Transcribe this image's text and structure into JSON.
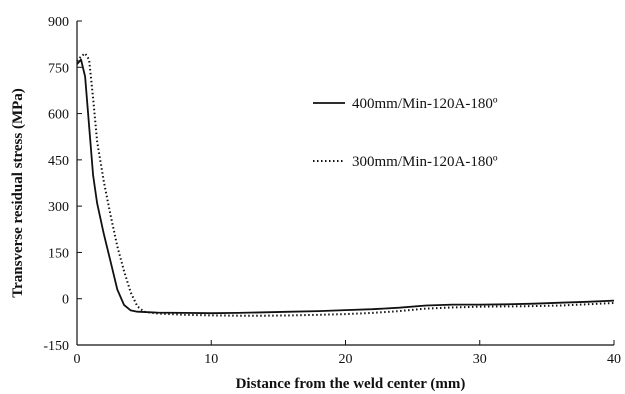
{
  "chart_data": {
    "type": "line",
    "title": "",
    "xlabel": "Distance from the weld center  (mm)",
    "ylabel": "Transverse residual stress  (MPa)",
    "xlim": [
      0,
      40
    ],
    "ylim": [
      -150,
      900
    ],
    "xticks": [
      0,
      10,
      20,
      30,
      40
    ],
    "yticks": [
      -150,
      0,
      150,
      300,
      450,
      600,
      750,
      900
    ],
    "grid": false,
    "legend_position": "right",
    "series": [
      {
        "name": "400mm/Min-120A-180º",
        "style": "solid",
        "color": "#111111",
        "x": [
          0,
          0.3,
          0.6,
          0.9,
          1.2,
          1.5,
          2.0,
          2.5,
          3.0,
          3.5,
          4.0,
          4.5,
          6,
          8,
          10,
          12,
          14,
          16,
          18,
          20,
          22,
          24,
          26,
          28,
          30,
          32,
          34,
          36,
          38,
          40
        ],
        "y": [
          760,
          775,
          720,
          560,
          400,
          310,
          210,
          120,
          30,
          -20,
          -38,
          -42,
          -45,
          -46,
          -47,
          -46,
          -44,
          -42,
          -40,
          -37,
          -34,
          -29,
          -22,
          -19,
          -19,
          -18,
          -16,
          -13,
          -10,
          -6
        ]
      },
      {
        "name": "300mm/Min-120A-180º",
        "style": "dotted",
        "color": "#111111",
        "x": [
          0,
          0.3,
          0.6,
          0.9,
          1.2,
          1.5,
          2.0,
          2.5,
          3.0,
          3.5,
          4.0,
          4.5,
          5.0,
          6,
          8,
          10,
          12,
          14,
          16,
          18,
          20,
          22,
          24,
          26,
          28,
          30,
          32,
          34,
          36,
          38,
          40
        ],
        "y": [
          770,
          785,
          795,
          775,
          650,
          510,
          380,
          270,
          170,
          90,
          20,
          -25,
          -42,
          -48,
          -52,
          -54,
          -55,
          -55,
          -54,
          -52,
          -50,
          -46,
          -40,
          -32,
          -28,
          -26,
          -25,
          -24,
          -22,
          -18,
          -14
        ]
      }
    ]
  }
}
